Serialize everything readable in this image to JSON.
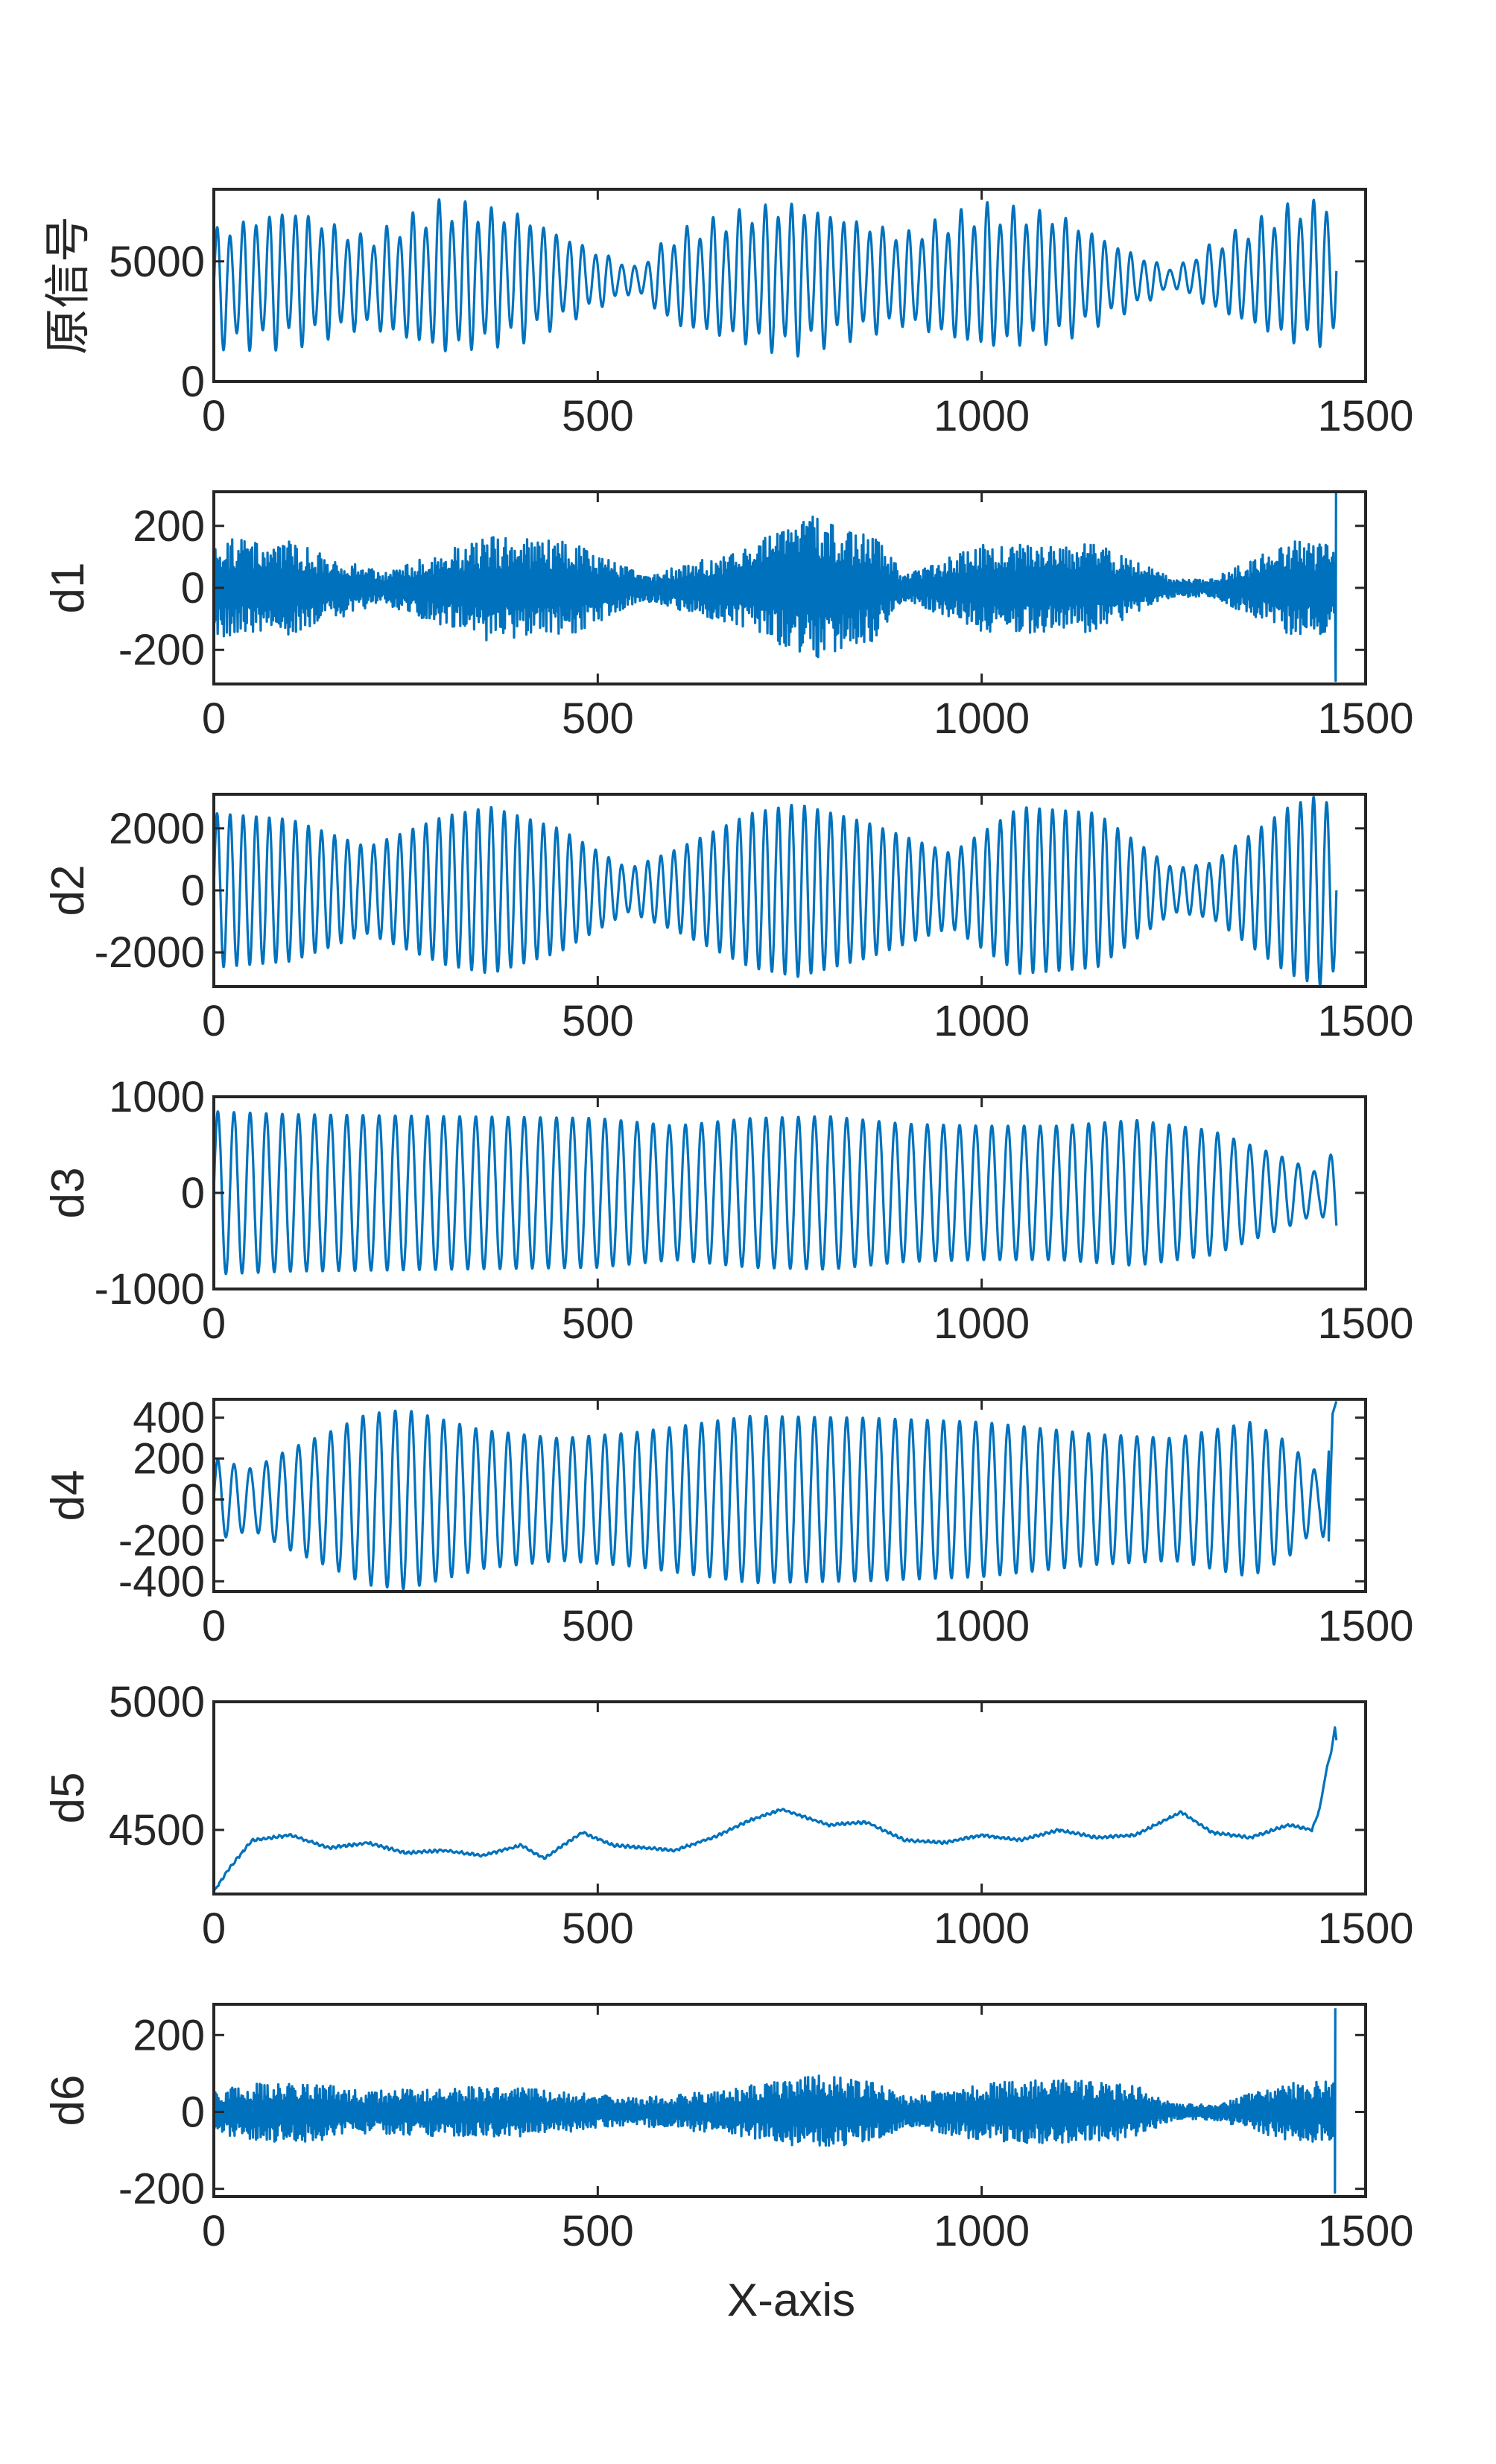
{
  "figure": {
    "xlabel": "X-axis",
    "line_color": "#0072BD",
    "axes_color": "#262626",
    "background": "#ffffff"
  },
  "chart_data": [
    {
      "type": "line",
      "ylabel": "原信号",
      "xlim": [
        0,
        1500
      ],
      "ylim": [
        0,
        8000
      ],
      "xticks": [
        "0",
        "500",
        "1000",
        "1500"
      ],
      "yticks": [
        {
          "value": 0,
          "label": "0"
        },
        {
          "value": 5000,
          "label": "5000"
        }
      ],
      "series": [
        {
          "x": [
            0,
            100,
            200,
            300,
            400,
            500,
            550,
            600,
            700,
            750,
            800,
            900,
            1000,
            1100,
            1200,
            1250,
            1300,
            1400,
            1462
          ],
          "y": [
            3200,
            4200,
            4000,
            4400,
            4300,
            4100,
            4200,
            4200,
            4200,
            4300,
            4200,
            4200,
            4100,
            4200,
            4200,
            4300,
            4200,
            4300,
            3000
          ],
          "envelope_min": [
            1200,
            1300,
            2100,
            900,
            1500,
            3000,
            3700,
            2100,
            1300,
            900,
            1400,
            2200,
            1100,
            1500,
            3000,
            3900,
            2900,
            1400,
            1300
          ],
          "envelope_max": [
            6500,
            7500,
            6100,
            7700,
            7200,
            5500,
            4800,
            6300,
            7400,
            7700,
            7300,
            6300,
            7500,
            7200,
            5400,
            4700,
            5800,
            7500,
            7900
          ],
          "oscillation_period": 17
        }
      ]
    },
    {
      "type": "line",
      "ylabel": "d1",
      "xlim": [
        0,
        1500
      ],
      "ylim": [
        -310,
        310
      ],
      "xticks": [
        "0",
        "500",
        "1000",
        "1500"
      ],
      "yticks": [
        {
          "value": 200,
          "label": "200"
        },
        {
          "value": 0,
          "label": "0"
        },
        {
          "value": -200,
          "label": "-200"
        }
      ],
      "series": [
        {
          "x": [
            0,
            100,
            220,
            350,
            470,
            560,
            680,
            780,
            860,
            900,
            1000,
            1100,
            1150,
            1250,
            1300,
            1400,
            1460
          ],
          "envelope": [
            160,
            150,
            50,
            170,
            150,
            40,
            120,
            230,
            170,
            40,
            140,
            150,
            140,
            30,
            30,
            150,
            150
          ],
          "end_spike": {
            "x": 1461,
            "ymin": -300,
            "ymax": 310
          },
          "oscillation_period": 3
        }
      ]
    },
    {
      "type": "line",
      "ylabel": "d2",
      "xlim": [
        0,
        1500
      ],
      "ylim": [
        -3100,
        3100
      ],
      "xticks": [
        "0",
        "500",
        "1000",
        "1500"
      ],
      "yticks": [
        {
          "value": 2000,
          "label": "2000"
        },
        {
          "value": 0,
          "label": "0"
        },
        {
          "value": -2000,
          "label": "-2000"
        }
      ],
      "series": [
        {
          "x": [
            0,
            100,
            200,
            300,
            360,
            450,
            540,
            600,
            700,
            760,
            850,
            960,
            1050,
            1150,
            1250,
            1300,
            1400,
            1440,
            1462
          ],
          "envelope": [
            2500,
            2300,
            1400,
            2400,
            2700,
            2000,
            700,
            1300,
            2500,
            2800,
            2200,
            1200,
            2700,
            2500,
            700,
            900,
            2700,
            3100,
            2500
          ],
          "oscillation_period": 17
        }
      ]
    },
    {
      "type": "line",
      "ylabel": "d3",
      "xlim": [
        0,
        1500
      ],
      "ylim": [
        -1000,
        1000
      ],
      "xticks": [
        "0",
        "500",
        "1000",
        "1500"
      ],
      "yticks": [
        {
          "value": 1000,
          "label": "1000"
        },
        {
          "value": 0,
          "label": "0"
        },
        {
          "value": -1000,
          "label": "-1000"
        }
      ],
      "series": [
        {
          "x": [
            0,
            100,
            300,
            500,
            600,
            700,
            800,
            900,
            1000,
            1100,
            1200,
            1300,
            1350,
            1400,
            1440,
            1462
          ],
          "envelope": [
            850,
            820,
            800,
            780,
            700,
            780,
            800,
            720,
            700,
            700,
            760,
            650,
            500,
            350,
            200,
            500
          ],
          "oscillation_period": 21
        }
      ]
    },
    {
      "type": "line",
      "ylabel": "d4",
      "xlim": [
        0,
        1500
      ],
      "ylim": [
        -450,
        490
      ],
      "xticks": [
        "0",
        "500",
        "1000",
        "1500"
      ],
      "yticks": [
        {
          "value": 400,
          "label": "400"
        },
        {
          "value": 200,
          "label": "200"
        },
        {
          "value": 0,
          "label": "0"
        },
        {
          "value": -200,
          "label": "-200"
        },
        {
          "value": -400,
          "label": "-400"
        }
      ],
      "series": [
        {
          "x": [
            0,
            50,
            100,
            150,
            200,
            250,
            300,
            350,
            450,
            550,
            700,
            850,
            1000,
            1150,
            1250,
            1350,
            1400,
            1440,
            1452
          ],
          "envelope": [
            200,
            150,
            250,
            330,
            420,
            440,
            390,
            340,
            300,
            330,
            410,
            400,
            380,
            320,
            300,
            380,
            280,
            120,
            300
          ],
          "end_jump": {
            "x": [
              1452,
              1457,
              1462
            ],
            "y": [
              -200,
              420,
              480
            ]
          },
          "oscillation_period": 21
        }
      ]
    },
    {
      "type": "line",
      "ylabel": "d5",
      "xlim": [
        0,
        1500
      ],
      "ylim": [
        4250,
        5000
      ],
      "xticks": [
        "0",
        "500",
        "1000",
        "1500"
      ],
      "yticks": [
        {
          "value": 5000,
          "label": "5000"
        },
        {
          "value": 4500,
          "label": "4500"
        }
      ],
      "series": [
        {
          "x": [
            0,
            20,
            50,
            100,
            150,
            200,
            250,
            300,
            350,
            400,
            430,
            480,
            520,
            600,
            650,
            700,
            740,
            800,
            850,
            900,
            950,
            1000,
            1050,
            1100,
            1150,
            1200,
            1260,
            1300,
            1350,
            1400,
            1430,
            1440,
            1450,
            1455,
            1460,
            1462
          ],
          "y": [
            4260,
            4350,
            4460,
            4480,
            4430,
            4450,
            4410,
            4420,
            4400,
            4440,
            4390,
            4490,
            4440,
            4420,
            4470,
            4540,
            4580,
            4520,
            4530,
            4460,
            4450,
            4480,
            4460,
            4500,
            4470,
            4480,
            4570,
            4490,
            4470,
            4520,
            4500,
            4580,
            4750,
            4800,
            4900,
            4850
          ]
        }
      ]
    },
    {
      "type": "line",
      "ylabel": "d6",
      "xlim": [
        0,
        1500
      ],
      "ylim": [
        -220,
        280
      ],
      "xticks": [
        "0",
        "500",
        "1000",
        "1500"
      ],
      "yticks": [
        {
          "value": 200,
          "label": "200"
        },
        {
          "value": 0,
          "label": "0"
        },
        {
          "value": -200,
          "label": "-200"
        }
      ],
      "series": [
        {
          "x": [
            0,
            100,
            200,
            300,
            400,
            550,
            650,
            800,
            850,
            900,
            1000,
            1100,
            1200,
            1250,
            1300,
            1400,
            1460
          ],
          "envelope": [
            60,
            85,
            55,
            65,
            65,
            35,
            55,
            100,
            85,
            40,
            75,
            85,
            70,
            20,
            20,
            75,
            80
          ],
          "end_spike": {
            "x": 1460,
            "ymin": -210,
            "ymax": 270
          },
          "oscillation_period": 5
        }
      ]
    }
  ]
}
